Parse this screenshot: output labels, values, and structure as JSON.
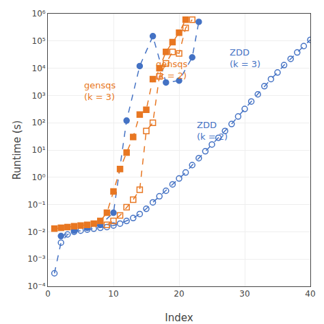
{
  "chart_data": {
    "type": "line",
    "xlabel": "Index",
    "ylabel": "Runtime (s)",
    "log": "y",
    "grid": true,
    "xlim": [
      0,
      40
    ],
    "xticks": [
      0,
      10,
      20,
      30,
      40
    ],
    "ylim": [
      0.0001,
      1000000.0
    ],
    "yticks": [
      {
        "value": 0.0001,
        "label": "10⁻⁴"
      },
      {
        "value": 0.001,
        "label": "10⁻³"
      },
      {
        "value": 0.01,
        "label": "10⁻²"
      },
      {
        "value": 0.1,
        "label": "10⁻¹"
      },
      {
        "value": 1,
        "label": "10⁰"
      },
      {
        "value": 10,
        "label": "10¹"
      },
      {
        "value": 100,
        "label": "10²"
      },
      {
        "value": 1000,
        "label": "10³"
      },
      {
        "value": 10000,
        "label": "10⁴"
      },
      {
        "value": 100000,
        "label": "10⁵"
      },
      {
        "value": 1000000,
        "label": "10⁶"
      }
    ],
    "series": [
      {
        "color": "#4472C4",
        "marker": "circle-open",
        "line_style": "dash",
        "x": [
          1,
          2,
          3,
          4,
          5,
          6,
          7,
          8,
          9,
          10,
          11,
          12,
          13,
          14,
          15,
          16,
          17,
          18,
          19,
          20,
          21,
          22,
          23,
          24,
          25,
          26,
          27,
          28,
          29,
          30,
          31,
          32,
          33,
          34,
          35,
          36,
          37,
          38,
          39,
          40
        ],
        "values": [
          0.0003,
          0.004,
          0.008,
          0.01,
          0.011,
          0.012,
          0.013,
          0.014,
          0.015,
          0.017,
          0.02,
          0.025,
          0.032,
          0.045,
          0.07,
          0.12,
          0.2,
          0.32,
          0.55,
          0.9,
          1.5,
          2.8,
          5.0,
          9.0,
          16,
          28,
          50,
          90,
          170,
          320,
          600,
          1100,
          2200,
          4000,
          7000,
          13000,
          22000,
          38000,
          65000,
          110000
        ]
      },
      {
        "color": "#4472C4",
        "marker": "circle",
        "line_style": "dash",
        "x": [
          2,
          4,
          6,
          8,
          10,
          12,
          14,
          16,
          18,
          20,
          22,
          23
        ],
        "values": [
          0.007,
          0.011,
          0.014,
          0.018,
          0.05,
          120.0,
          12000.0,
          150000.0,
          3000.0,
          3500.0,
          25000.0,
          500000.0
        ]
      },
      {
        "color": "#E87722",
        "marker": "square",
        "line_style": "dash",
        "x": [
          1,
          2,
          3,
          4,
          5,
          6,
          7,
          8,
          9,
          10,
          11,
          12,
          13,
          14,
          15,
          16,
          17,
          18,
          19,
          20,
          21
        ],
        "values": [
          0.013,
          0.014,
          0.015,
          0.016,
          0.017,
          0.018,
          0.02,
          0.025,
          0.05,
          0.3,
          2.0,
          8.0,
          30,
          200,
          300,
          4000,
          10000,
          40000.0,
          90000.0,
          200000.0,
          600000.0
        ]
      },
      {
        "color": "#E87722",
        "marker": "square-open",
        "line_style": "dash",
        "x": [
          9,
          10,
          11,
          12,
          13,
          14,
          15,
          16,
          17,
          18,
          19,
          20,
          21,
          22
        ],
        "values": [
          0.018,
          0.025,
          0.04,
          0.08,
          0.15,
          0.35,
          50,
          100,
          5000,
          15000.0,
          40000.0,
          35000.0,
          300000.0,
          600000.0
        ]
      }
    ],
    "annotations": [
      {
        "text": "gensqs\n(k = 3)",
        "x": 5.3,
        "y": 500.0,
        "color": "#E87722"
      },
      {
        "text": "gensqs\n(k = 2)",
        "x": 16.2,
        "y": 3000.0,
        "color": "#E87722"
      },
      {
        "text": "ZDD\n(k = 2)",
        "x": 22.5,
        "y": 18,
        "color": "#4472C4"
      },
      {
        "text": "ZDD\n(k = 3)",
        "x": 27.5,
        "y": 8000.0,
        "color": "#4472C4"
      }
    ]
  }
}
